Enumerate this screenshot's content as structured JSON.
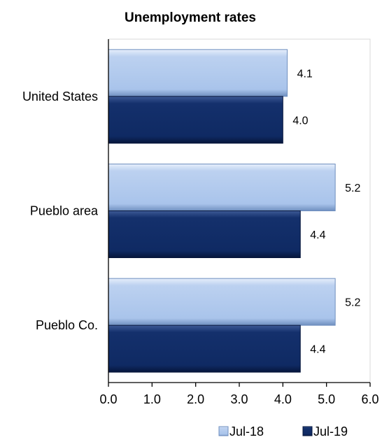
{
  "chart_data": {
    "type": "bar",
    "orientation": "horizontal",
    "title": "Unemployment rates",
    "categories": [
      "United States",
      "Pueblo area",
      "Pueblo Co."
    ],
    "series": [
      {
        "name": "Jul-18",
        "values": [
          4.1,
          5.2,
          5.2
        ],
        "color": "#a9c4eb"
      },
      {
        "name": "Jul-19",
        "values": [
          4.0,
          4.4,
          4.4
        ],
        "color": "#0f2a63"
      }
    ],
    "data_labels": [
      [
        "4.1",
        "5.2",
        "5.2"
      ],
      [
        "4.0",
        "4.4",
        "4.4"
      ]
    ],
    "xlim": [
      0,
      6
    ],
    "xticks": [
      "0.0",
      "1.0",
      "2.0",
      "3.0",
      "4.0",
      "5.0",
      "6.0"
    ],
    "xlabel": "",
    "ylabel": "",
    "grid": false,
    "legend": "bottom-right"
  }
}
